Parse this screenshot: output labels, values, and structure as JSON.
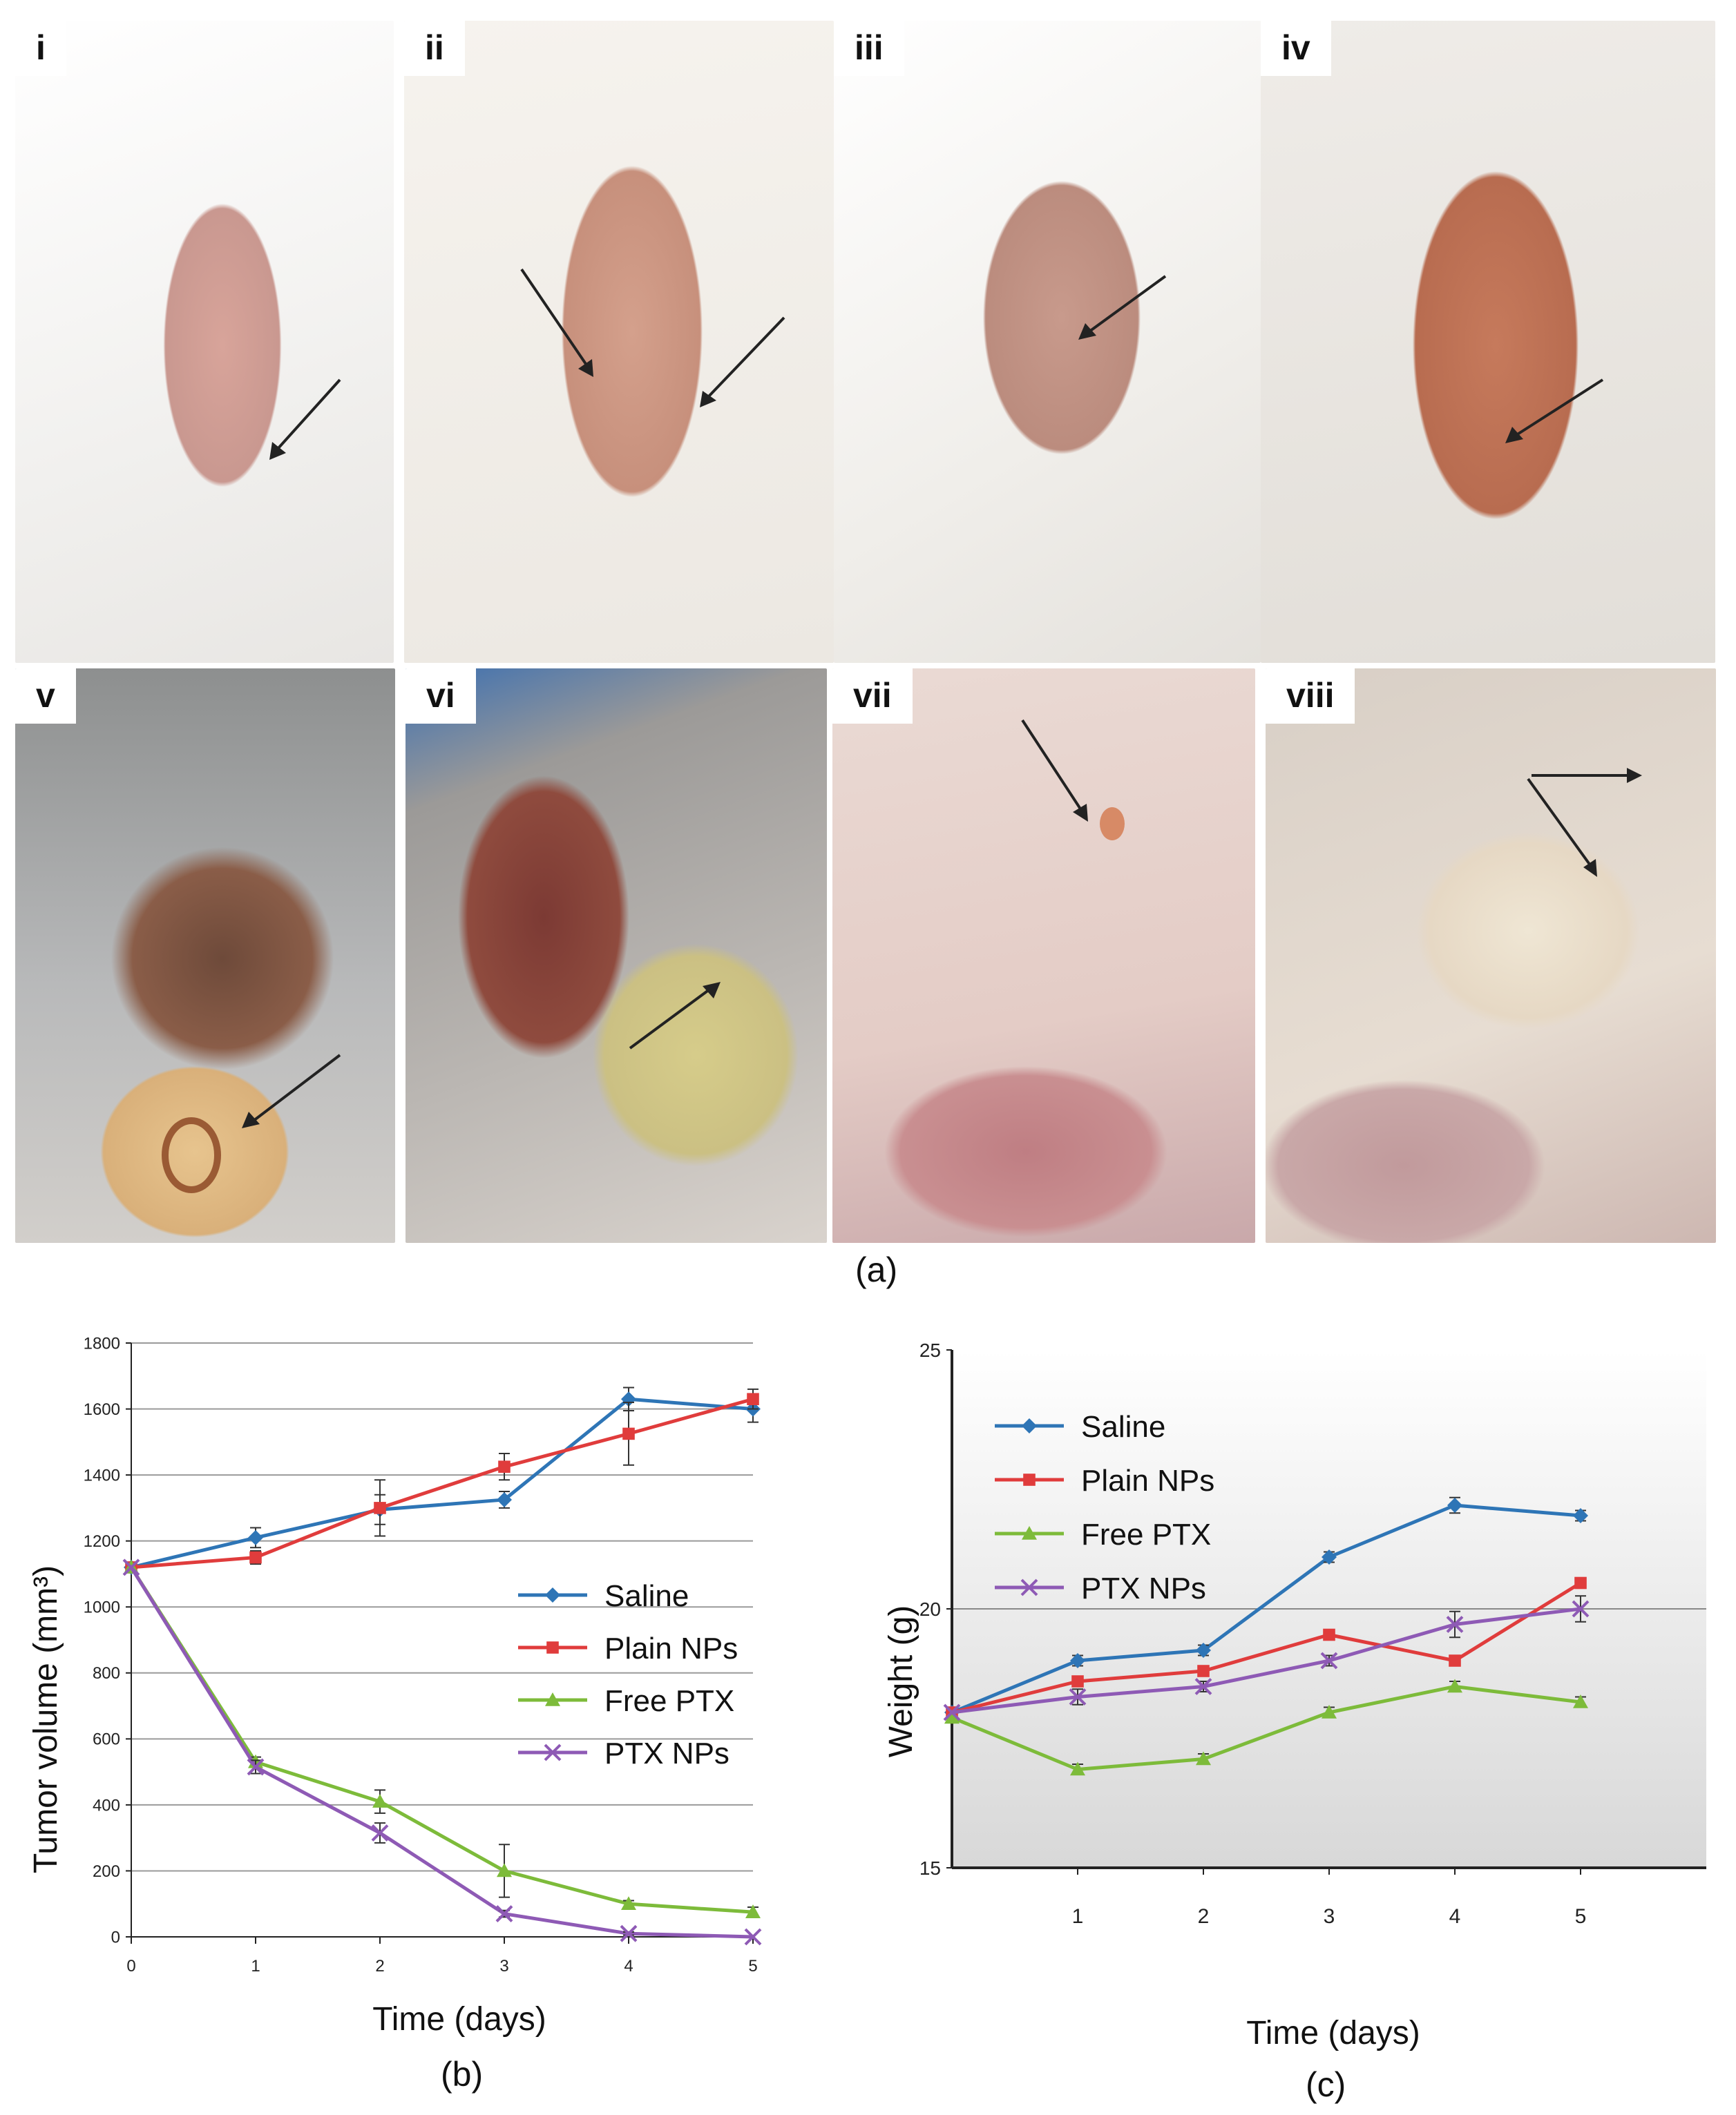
{
  "photos": [
    {
      "label": "i"
    },
    {
      "label": "ii"
    },
    {
      "label": "iii"
    },
    {
      "label": "iv"
    },
    {
      "label": "v"
    },
    {
      "label": "vi"
    },
    {
      "label": "vii"
    },
    {
      "label": "viii"
    }
  ],
  "captions": {
    "a": "(a)",
    "b": "(b)",
    "c": "(c)"
  },
  "legend_colors": {
    "Saline": "#2e75b6",
    "Plain NPs": "#e03c3c",
    "Free PTX": "#7dbb3a",
    "PTX NPs": "#8e5ab5"
  },
  "chart_data": [
    {
      "type": "line",
      "xlabel": "Time (days)",
      "ylabel": "Tumor volume (mm³)",
      "ylim": [
        0,
        1800
      ],
      "xlim": [
        0,
        5
      ],
      "x_ticks": [
        0,
        1,
        2,
        3,
        4,
        5
      ],
      "y_ticks": [
        0,
        200,
        400,
        600,
        800,
        1000,
        1200,
        1400,
        1600,
        1800
      ],
      "grid": "horizontal",
      "legend_position": "center-right",
      "series": [
        {
          "name": "Saline",
          "x": [
            0,
            1,
            2,
            3,
            4,
            5
          ],
          "values": [
            1120,
            1210,
            1295,
            1325,
            1630,
            1600
          ],
          "errors": [
            0,
            30,
            45,
            25,
            35,
            40
          ],
          "marker": "diamond"
        },
        {
          "name": "Plain NPs",
          "x": [
            0,
            1,
            2,
            3,
            4,
            5
          ],
          "values": [
            1120,
            1150,
            1300,
            1425,
            1525,
            1630
          ],
          "errors": [
            0,
            20,
            85,
            40,
            95,
            30
          ],
          "marker": "square"
        },
        {
          "name": "Free PTX",
          "x": [
            0,
            1,
            2,
            3,
            4,
            5
          ],
          "values": [
            1120,
            530,
            410,
            200,
            100,
            75
          ],
          "errors": [
            0,
            15,
            35,
            80,
            10,
            15
          ],
          "marker": "triangle"
        },
        {
          "name": "PTX NPs",
          "x": [
            0,
            1,
            2,
            3,
            4,
            5
          ],
          "values": [
            1120,
            515,
            315,
            70,
            10,
            0
          ],
          "errors": [
            0,
            20,
            30,
            10,
            5,
            0
          ],
          "marker": "x"
        }
      ]
    },
    {
      "type": "line",
      "xlabel": "Time (days)",
      "ylabel": "Weight (g)",
      "ylim": [
        15,
        25
      ],
      "xlim": [
        0,
        6
      ],
      "x_ticks": [
        1,
        2,
        3,
        4,
        5
      ],
      "y_ticks": [
        15,
        20,
        25
      ],
      "grid": "horizontal",
      "legend_position": "top-left",
      "series": [
        {
          "name": "Saline",
          "x": [
            0,
            1,
            2,
            3,
            4,
            5
          ],
          "values": [
            18.0,
            19.0,
            19.2,
            21.0,
            22.0,
            21.8
          ],
          "errors": [
            0,
            0.1,
            0.1,
            0.1,
            0.15,
            0.1
          ],
          "marker": "diamond"
        },
        {
          "name": "Plain NPs",
          "x": [
            0,
            1,
            2,
            3,
            4,
            5
          ],
          "values": [
            18.0,
            18.6,
            18.8,
            19.5,
            19.0,
            20.5
          ],
          "errors": [
            0,
            0.1,
            0.1,
            0.1,
            0.1,
            0.1
          ],
          "marker": "square"
        },
        {
          "name": "Free PTX",
          "x": [
            0,
            1,
            2,
            3,
            4,
            5
          ],
          "values": [
            17.9,
            16.9,
            17.1,
            18.0,
            18.5,
            18.2
          ],
          "errors": [
            0,
            0.1,
            0.1,
            0.1,
            0.1,
            0.1
          ],
          "marker": "triangle"
        },
        {
          "name": "PTX NPs",
          "x": [
            0,
            1,
            2,
            3,
            4,
            5
          ],
          "values": [
            18.0,
            18.3,
            18.5,
            19.0,
            19.7,
            20.0
          ],
          "errors": [
            0,
            0.15,
            0.1,
            0.1,
            0.25,
            0.25
          ],
          "marker": "x"
        }
      ]
    }
  ]
}
